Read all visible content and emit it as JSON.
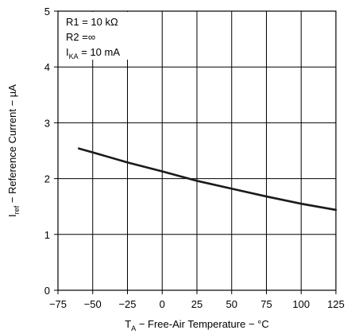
{
  "chart_data": {
    "type": "line",
    "title": "",
    "xlabel": {
      "main": "T",
      "sub": "A",
      "rest": " − Free-Air Temperature − °C"
    },
    "ylabel": {
      "main": "I",
      "sub": "ref",
      "rest": " − Reference Current − µA"
    },
    "xlim": [
      -75,
      125
    ],
    "ylim": [
      0,
      5
    ],
    "xticks": [
      -75,
      -50,
      -25,
      0,
      25,
      50,
      75,
      100,
      125
    ],
    "xtick_labels": [
      "−75",
      "−50",
      "−25",
      "0",
      "25",
      "50",
      "75",
      "100",
      "125"
    ],
    "yticks": [
      0,
      1,
      2,
      3,
      4,
      5
    ],
    "ytick_labels": [
      "0",
      "1",
      "2",
      "3",
      "4",
      "5"
    ],
    "grid": true,
    "annotations": [
      {
        "main": "R1 = 10 kΩ",
        "sub": "",
        "rest": ""
      },
      {
        "main": "R2 =∞",
        "sub": "",
        "rest": ""
      },
      {
        "main": "I",
        "sub": "KA",
        "rest": " = 10 mA"
      }
    ],
    "series": [
      {
        "x": [
          -60,
          -50,
          -25,
          0,
          25,
          50,
          75,
          100,
          125
        ],
        "y": [
          2.54,
          2.47,
          2.29,
          2.13,
          1.96,
          1.82,
          1.68,
          1.55,
          1.44
        ],
        "color": "#1a1a1a"
      }
    ]
  }
}
